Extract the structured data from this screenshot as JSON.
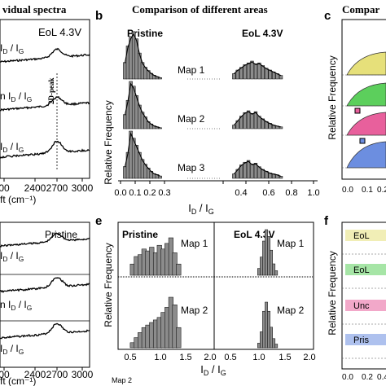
{
  "headers": {
    "left": "vidual spectra",
    "middle": "Comparison of different areas",
    "right": "Compar"
  },
  "panel_letters": {
    "b": "b",
    "c": "c",
    "e": "e",
    "f": "f"
  },
  "spectra_top": {
    "title_right": "EoL 4.3V",
    "peak_label": "2D-peak",
    "labels": [
      {
        "prefix": "",
        "base": "I",
        "sub1": "D",
        "sep": " / ",
        "base2": "I",
        "sub2": "G"
      },
      {
        "prefix": "n ",
        "base": "I",
        "sub1": "D",
        "sep": " / ",
        "base2": "I",
        "sub2": "G"
      },
      {
        "prefix": "",
        "base": "I",
        "sub1": "D",
        "sep": " / ",
        "base2": "I",
        "sub2": "G"
      }
    ],
    "xticks": [
      "00",
      "2400",
      "2700",
      "3000"
    ],
    "xlabel": "ft (cm⁻¹)"
  },
  "spectra_bottom": {
    "title_right": "Pristine",
    "labels": [
      {
        "prefix": "",
        "base": "I",
        "sub1": "D",
        "sep": " / ",
        "base2": "I",
        "sub2": "G"
      },
      {
        "prefix": "n ",
        "base": "I",
        "sub1": "D",
        "sep": " / ",
        "base2": "I",
        "sub2": "G"
      },
      {
        "prefix": "",
        "base": "I",
        "sub1": "D",
        "sep": " / ",
        "base2": "I",
        "sub2": "G"
      }
    ],
    "xticks": [
      "00",
      "2400",
      "2700",
      "3000"
    ],
    "xlabel": "ft (cm⁻¹)"
  },
  "panel_b": {
    "left_title": "Pristine",
    "right_title": "EoL 4.3V",
    "map_labels": [
      "Map 1",
      "Map 2",
      "Map 3"
    ],
    "ylabel": "Relative Frequency",
    "xlabel_base": "I",
    "xlabel_sub1": "D",
    "xlabel_sep": " / ",
    "xlabel_sub2": "G",
    "xticks": [
      "0.0",
      "0.1",
      "0.2",
      "0.3",
      "0.4",
      "0.6",
      "0.8",
      "1.0"
    ]
  },
  "panel_e": {
    "left_title": "Pristine",
    "right_title": "EoL 4.3V",
    "map_labels": [
      "Map 1",
      "Map 2"
    ],
    "ylabel": "Relative Frequency",
    "xlabel_base": "I",
    "xlabel_sub1": "D",
    "xlabel_sep": " / ",
    "xlabel_sub2": "G",
    "xticks_left": [
      "0.5",
      "1.0",
      "1.5",
      "2.0"
    ],
    "xticks_right": [
      "0.5",
      "1.0",
      "1.5",
      "2.0"
    ],
    "caption": "Map 2"
  },
  "panel_c": {
    "ylabel": "Relative Frequency",
    "xticks": [
      "0.0",
      "0.1",
      "0.2"
    ]
  },
  "panel_f": {
    "ylabel": "Relative Frequency",
    "legend": [
      "EoL",
      "EoL",
      "Unc",
      "Pris"
    ],
    "legend_colors": [
      "#e6e07a",
      "#5ccf5c",
      "#e8609c",
      "#6c8ee0"
    ],
    "xticks": [
      "0.0",
      "0.2",
      "0.4"
    ]
  },
  "chart_data": [
    {
      "type": "bar",
      "title": "",
      "xlabel": "ID / IG",
      "ylabel": "Relative Frequency",
      "xlim": [
        0,
        0.4
      ],
      "series": [
        {
          "name": "Map 1",
          "x": [
            0.03,
            0.05,
            0.07,
            0.09,
            0.11,
            0.13,
            0.15,
            0.17,
            0.19,
            0.21,
            0.23,
            0.25,
            0.27
          ],
          "values": [
            0.35,
            0.7,
            0.9,
            1.0,
            0.85,
            0.55,
            0.35,
            0.25,
            0.18,
            0.12,
            0.08,
            0.05,
            0.03
          ]
        },
        {
          "name": "Map 2",
          "x": [
            0.03,
            0.05,
            0.07,
            0.09,
            0.11,
            0.13,
            0.15,
            0.17,
            0.19,
            0.21,
            0.23,
            0.25,
            0.27
          ],
          "values": [
            0.3,
            0.6,
            1.0,
            0.9,
            0.7,
            0.5,
            0.35,
            0.25,
            0.15,
            0.1,
            0.06,
            0.04,
            0.02
          ]
        },
        {
          "name": "Map 3",
          "x": [
            0.03,
            0.05,
            0.07,
            0.09,
            0.11,
            0.13,
            0.15,
            0.17,
            0.19,
            0.21,
            0.23,
            0.25,
            0.27
          ],
          "values": [
            0.25,
            0.55,
            1.0,
            0.85,
            0.7,
            0.55,
            0.4,
            0.3,
            0.22,
            0.15,
            0.1,
            0.08,
            0.05
          ]
        }
      ]
    },
    {
      "type": "bar",
      "title": "",
      "xlabel": "ID / IG",
      "ylabel": "Relative Frequency",
      "xlim": [
        0,
        1.0
      ],
      "series": [
        {
          "name": "Map 1",
          "x": [
            0.12,
            0.16,
            0.2,
            0.24,
            0.28,
            0.32,
            0.36,
            0.4,
            0.44,
            0.48,
            0.52,
            0.56,
            0.6,
            0.64
          ],
          "values": [
            0.3,
            0.5,
            0.65,
            0.8,
            0.9,
            1.0,
            0.85,
            0.9,
            0.75,
            0.6,
            0.5,
            0.4,
            0.3,
            0.2
          ]
        },
        {
          "name": "Map 2",
          "x": [
            0.12,
            0.16,
            0.2,
            0.24,
            0.28,
            0.32,
            0.36,
            0.4,
            0.44,
            0.48,
            0.52,
            0.56,
            0.6,
            0.64
          ],
          "values": [
            0.2,
            0.45,
            0.7,
            0.9,
            1.0,
            0.85,
            0.95,
            0.7,
            0.55,
            0.4,
            0.3,
            0.2,
            0.15,
            0.1
          ]
        },
        {
          "name": "Map 3",
          "x": [
            0.12,
            0.16,
            0.2,
            0.24,
            0.28,
            0.32,
            0.36,
            0.4,
            0.44,
            0.48,
            0.52,
            0.56,
            0.6,
            0.64
          ],
          "values": [
            0.25,
            0.5,
            0.75,
            0.9,
            1.0,
            0.8,
            0.85,
            0.65,
            0.5,
            0.4,
            0.3,
            0.25,
            0.2,
            0.12
          ]
        }
      ]
    },
    {
      "type": "bar",
      "title": "",
      "xlabel": "ID / IG",
      "ylabel": "Relative Frequency",
      "xlim": [
        0,
        2.0
      ],
      "series": [
        {
          "name": "Map 1",
          "x": [
            0.3,
            0.38,
            0.46,
            0.54,
            0.62,
            0.7,
            0.78,
            0.86,
            0.94,
            1.02,
            1.1,
            1.18,
            1.26
          ],
          "values": [
            0.3,
            0.5,
            0.55,
            0.7,
            0.65,
            0.75,
            0.6,
            0.8,
            0.7,
            0.85,
            1.0,
            0.6,
            0.3
          ]
        },
        {
          "name": "Map 2",
          "x": [
            0.3,
            0.38,
            0.46,
            0.54,
            0.62,
            0.7,
            0.78,
            0.86,
            0.94,
            1.02,
            1.1,
            1.18,
            1.26
          ],
          "values": [
            0.1,
            0.2,
            0.3,
            0.4,
            0.45,
            0.5,
            0.55,
            0.6,
            0.7,
            0.8,
            1.0,
            0.85,
            0.4
          ]
        }
      ]
    },
    {
      "type": "bar",
      "title": "",
      "xlabel": "ID / IG",
      "ylabel": "Relative Frequency",
      "xlim": [
        0,
        2.0
      ],
      "series": [
        {
          "name": "Map 1",
          "x": [
            0.9,
            0.95,
            1.0,
            1.05,
            1.1,
            1.15,
            1.2,
            1.25
          ],
          "values": [
            0.15,
            0.4,
            0.75,
            1.0,
            0.85,
            0.55,
            0.25,
            0.1
          ]
        },
        {
          "name": "Map 2",
          "x": [
            0.9,
            0.95,
            1.0,
            1.05,
            1.1,
            1.15,
            1.2,
            1.25
          ],
          "values": [
            0.1,
            0.35,
            0.8,
            1.0,
            0.8,
            0.45,
            0.2,
            0.08
          ]
        }
      ]
    }
  ]
}
